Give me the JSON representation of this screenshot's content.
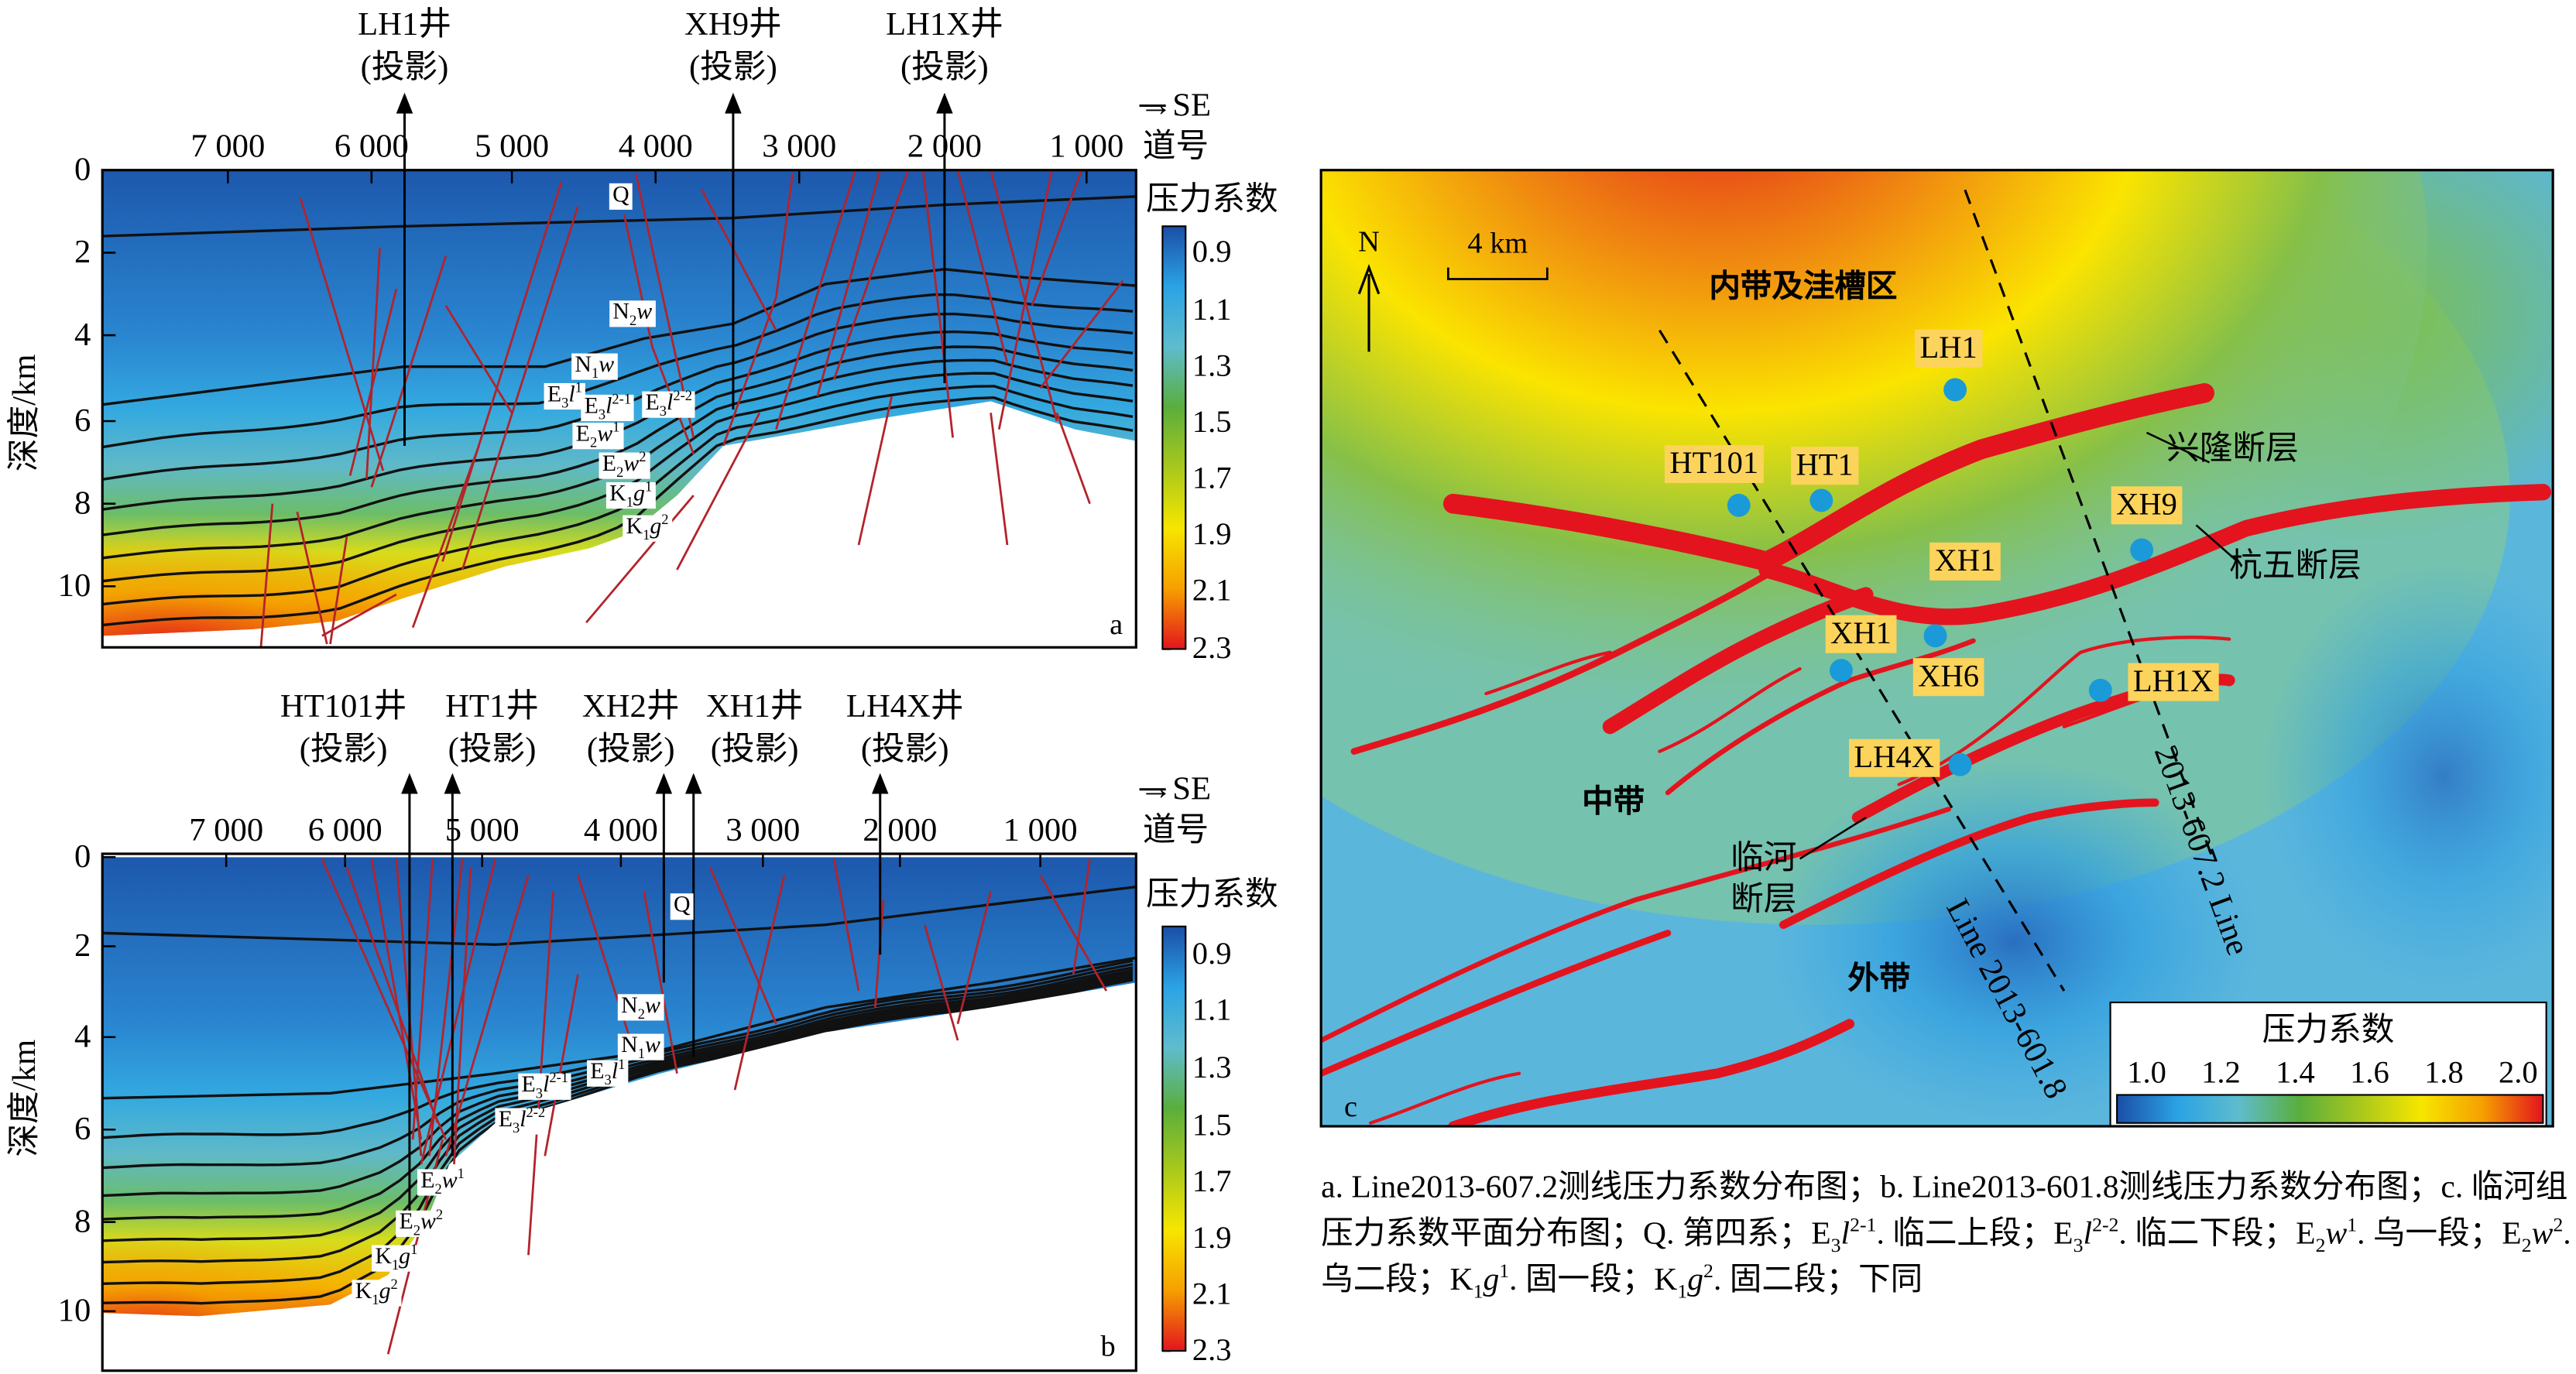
{
  "colorbar_colors": [
    "#1b4ea6",
    "#2aa3e4",
    "#5fbccd",
    "#5aae3c",
    "#a9c81c",
    "#f7e600",
    "#f6a000",
    "#e3141e"
  ],
  "panel_a": {
    "label": "a",
    "wells": [
      {
        "name": "LH1井",
        "note": "(投影)"
      },
      {
        "name": "XH9井",
        "note": "(投影)"
      },
      {
        "name": "LH1X井",
        "note": "(投影)"
      }
    ],
    "direction": "→SE",
    "trace_label": "道号",
    "trace_ticks": [
      "7 000",
      "6 000",
      "5 000",
      "4 000",
      "3 000",
      "2 000",
      "1 000"
    ],
    "depth_ticks": [
      "0",
      "2",
      "4",
      "6",
      "8",
      "10"
    ],
    "depth_label": "深度/km",
    "colorbar_title": "压力系数",
    "colorbar_ticks": [
      "0.9",
      "1.1",
      "1.3",
      "1.5",
      "1.7",
      "1.9",
      "2.1",
      "2.3"
    ],
    "formations": [
      [
        [
          "Q",
          ""
        ]
      ],
      [
        [
          "N",
          ""
        ],
        [
          "2",
          "sub"
        ],
        [
          "w",
          "i"
        ]
      ],
      [
        [
          "N",
          ""
        ],
        [
          "1",
          "sub"
        ],
        [
          "w",
          "i"
        ]
      ],
      [
        [
          "E",
          ""
        ],
        [
          "3",
          "sub"
        ],
        [
          "l",
          "i"
        ],
        [
          "1",
          "sup"
        ]
      ],
      [
        [
          "E",
          ""
        ],
        [
          "3",
          "sub"
        ],
        [
          "l",
          "i"
        ],
        [
          "2-1",
          "sup"
        ]
      ],
      [
        [
          "E",
          ""
        ],
        [
          "3",
          "sub"
        ],
        [
          "l",
          "i"
        ],
        [
          "2-2",
          "sup"
        ]
      ],
      [
        [
          "E",
          ""
        ],
        [
          "2",
          "sub"
        ],
        [
          "w",
          "i"
        ],
        [
          "1",
          "sup"
        ]
      ],
      [
        [
          "E",
          ""
        ],
        [
          "2",
          "sub"
        ],
        [
          "w",
          "i"
        ],
        [
          "2",
          "sup"
        ]
      ],
      [
        [
          "K",
          ""
        ],
        [
          "1",
          "sub"
        ],
        [
          "g",
          "i"
        ],
        [
          "1",
          "sup"
        ]
      ],
      [
        [
          "K",
          ""
        ],
        [
          "1",
          "sub"
        ],
        [
          "g",
          "i"
        ],
        [
          "2",
          "sup"
        ]
      ]
    ]
  },
  "panel_b": {
    "label": "b",
    "wells": [
      {
        "name": "HT101井",
        "note": "(投影)"
      },
      {
        "name": "HT1井",
        "note": "(投影)"
      },
      {
        "name": "XH2井",
        "note": "(投影)"
      },
      {
        "name": "XH1井",
        "note": "(投影)"
      },
      {
        "name": "LH4X井",
        "note": "(投影)"
      }
    ],
    "direction": "→SE",
    "trace_label": "道号",
    "trace_ticks": [
      "7 000",
      "6 000",
      "5 000",
      "4 000",
      "3 000",
      "2 000",
      "1 000"
    ],
    "depth_ticks": [
      "0",
      "2",
      "4",
      "6",
      "8",
      "10"
    ],
    "depth_label": "深度/km",
    "colorbar_title": "压力系数",
    "colorbar_ticks": [
      "0.9",
      "1.1",
      "1.3",
      "1.5",
      "1.7",
      "1.9",
      "2.1",
      "2.3"
    ],
    "formations": [
      [
        [
          "Q",
          ""
        ]
      ],
      [
        [
          "N",
          ""
        ],
        [
          "2",
          "sub"
        ],
        [
          "w",
          "i"
        ]
      ],
      [
        [
          "N",
          ""
        ],
        [
          "1",
          "sub"
        ],
        [
          "w",
          "i"
        ]
      ],
      [
        [
          "E",
          ""
        ],
        [
          "3",
          "sub"
        ],
        [
          "l",
          "i"
        ],
        [
          "2-1",
          "sup"
        ]
      ],
      [
        [
          "E",
          ""
        ],
        [
          "3",
          "sub"
        ],
        [
          "l",
          "i"
        ],
        [
          "1",
          "sup"
        ]
      ],
      [
        [
          "E",
          ""
        ],
        [
          "3",
          "sub"
        ],
        [
          "l",
          "i"
        ],
        [
          "2-2",
          "sup"
        ]
      ],
      [
        [
          "E",
          ""
        ],
        [
          "2",
          "sub"
        ],
        [
          "w",
          "i"
        ],
        [
          "1",
          "sup"
        ]
      ],
      [
        [
          "E",
          ""
        ],
        [
          "2",
          "sub"
        ],
        [
          "w",
          "i"
        ],
        [
          "2",
          "sup"
        ]
      ],
      [
        [
          "K",
          ""
        ],
        [
          "1",
          "sub"
        ],
        [
          "g",
          "i"
        ],
        [
          "1",
          "sup"
        ]
      ],
      [
        [
          "K",
          ""
        ],
        [
          "1",
          "sub"
        ],
        [
          "g",
          "i"
        ],
        [
          "2",
          "sup"
        ]
      ]
    ]
  },
  "map": {
    "label": "c",
    "north": "N",
    "scale": "4 km",
    "zones": {
      "inner": "内带及洼槽区",
      "middle": "中带",
      "outer": "外带"
    },
    "faults": {
      "xinglong": "兴隆断层",
      "hangwu": "杭五断层",
      "linhe_1": "临河",
      "linhe_2": "断层"
    },
    "lines": [
      {
        "prefix": "2013-607.2",
        "word": "Line"
      },
      {
        "prefix": "2013-601.8",
        "word": "Line"
      }
    ],
    "wells": [
      "LH1",
      "HT101",
      "HT1",
      "XH9",
      "XH1",
      "XH1",
      "XH6",
      "LH1X",
      "LH4X"
    ],
    "well_dot_color": "#1a9ad8",
    "label_bg": "#fcd35b",
    "fault_color": "#e3141e",
    "colorbar_title": "压力系数",
    "colorbar_ticks": [
      "1.0",
      "1.2",
      "1.4",
      "1.6",
      "1.8",
      "2.0"
    ]
  },
  "caption": [
    [
      "a. Line2013-607.2测线压力系数分布图；b. Line2013-601.8测线压力系数分布图；c. 临河组压力系数平面分布图；Q. 第四系；E",
      ""
    ],
    [
      "3",
      "sub"
    ],
    [
      "l",
      "i"
    ],
    [
      "2-1",
      "sup"
    ],
    [
      ". 临二上段；E",
      ""
    ],
    [
      "3",
      "sub"
    ],
    [
      "l",
      "i"
    ],
    [
      "2-2",
      "sup"
    ],
    [
      ". 临二下段；E",
      ""
    ],
    [
      "2",
      "sub"
    ],
    [
      "w",
      "i"
    ],
    [
      "1",
      "sup"
    ],
    [
      ". 乌一段；E",
      ""
    ],
    [
      "2",
      "sub"
    ],
    [
      "w",
      "i"
    ],
    [
      "2",
      "sup"
    ],
    [
      ". 乌二段；K",
      ""
    ],
    [
      "1",
      "sub"
    ],
    [
      "g",
      "i"
    ],
    [
      "1",
      "sup"
    ],
    [
      ". 固一段；K",
      ""
    ],
    [
      "1",
      "sub"
    ],
    [
      "g",
      "i"
    ],
    [
      "2",
      "sup"
    ],
    [
      ". 固二段；下同",
      ""
    ]
  ]
}
